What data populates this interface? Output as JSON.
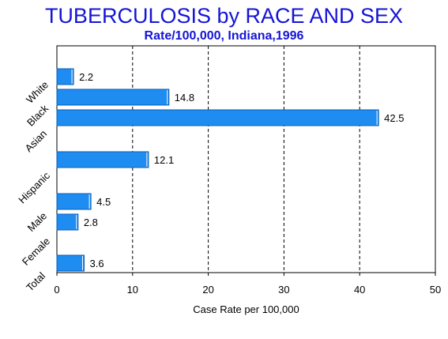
{
  "chart_data": {
    "type": "bar",
    "orientation": "horizontal",
    "title": "TUBERCULOSIS by RACE AND SEX",
    "subtitle": "Rate/100,000, Indiana,1996",
    "xlabel": "Case Rate per 100,000",
    "ylabel": "",
    "xlim": [
      0,
      50
    ],
    "xticks": [
      "0",
      "10",
      "20",
      "30",
      "40",
      "50"
    ],
    "grid": "vertical dashed",
    "bar_color": "#1e8cf0",
    "title_color": "#1414d6",
    "categories": [
      "White",
      "Black",
      "Asian",
      "Hispanic",
      "Male",
      "Female",
      "Total"
    ],
    "values": [
      2.2,
      14.8,
      42.5,
      12.1,
      4.5,
      2.8,
      3.6
    ],
    "value_labels": [
      "2.2",
      "14.8",
      "42.5",
      "12.1",
      "4.5",
      "2.8",
      "3.6"
    ]
  }
}
